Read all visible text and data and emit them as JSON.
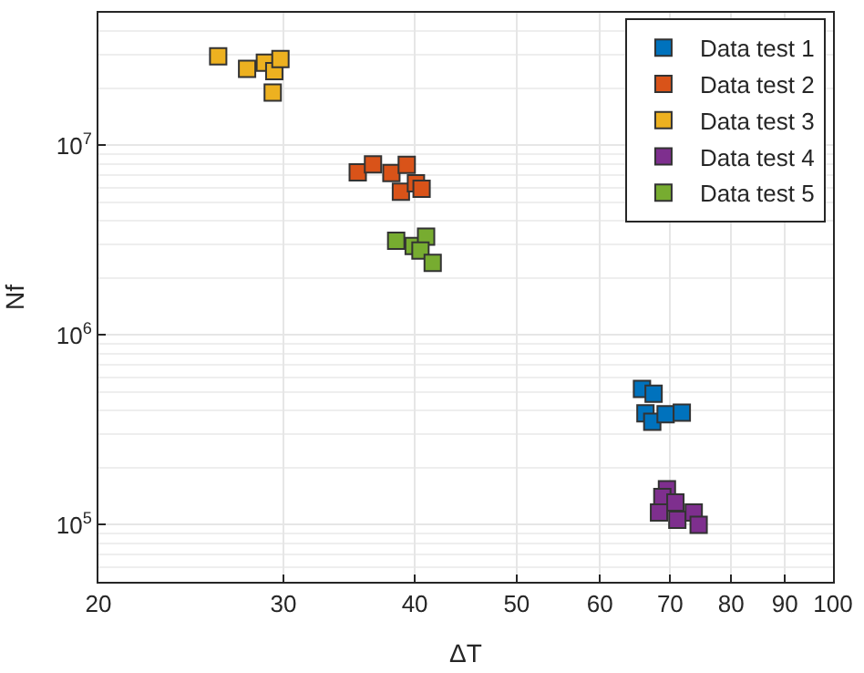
{
  "chart_data": {
    "type": "scatter",
    "xlabel": "ΔT",
    "ylabel": "Nf",
    "log": "xy",
    "grid": true,
    "legend": "top right",
    "marker": "square",
    "xlim": [
      20,
      100
    ],
    "xticks": [
      20,
      30,
      40,
      50,
      60,
      70,
      80,
      90,
      100
    ],
    "ylim": [
      50000,
      50000000
    ],
    "yticks": [
      {
        "value": 100000,
        "label": "10$^{5}$"
      },
      {
        "value": 1000000,
        "label": "10$^{6}$"
      },
      {
        "value": 10000000,
        "label": "10$^{7}$"
      }
    ],
    "series": [
      {
        "name": "Data test 1",
        "color": "#0072bd",
        "x": [
          65.8,
          67.5,
          66.3,
          67.3,
          69.3,
          71.8
        ],
        "values": [
          520000,
          490000,
          387000,
          349000,
          382000,
          390000
        ]
      },
      {
        "name": "Data test 2",
        "color": "#d95319",
        "x": [
          35.3,
          36.5,
          38.0,
          39.3,
          38.8,
          40.1,
          40.6
        ],
        "values": [
          7200000,
          7940000,
          7150000,
          7900000,
          5700000,
          6300000,
          5900000
        ]
      },
      {
        "name": "Data test 3",
        "color": "#edb120",
        "x": [
          26.0,
          27.7,
          28.8,
          29.4,
          29.8,
          29.3
        ],
        "values": [
          29500000,
          25300000,
          27300000,
          24600000,
          28500000,
          19000000
        ]
      },
      {
        "name": "Data test 4",
        "color": "#7e2f8e",
        "x": [
          69.5,
          68.8,
          70.8,
          68.3,
          71.1,
          73.7,
          74.5
        ],
        "values": [
          154000,
          140000,
          131000,
          116000,
          106000,
          116000,
          100000
        ]
      },
      {
        "name": "Data test 5",
        "color": "#77ac30",
        "x": [
          38.4,
          39.9,
          41.0,
          40.5,
          41.6
        ],
        "values": [
          3140000,
          2950000,
          3300000,
          2790000,
          2400000
        ]
      }
    ]
  }
}
